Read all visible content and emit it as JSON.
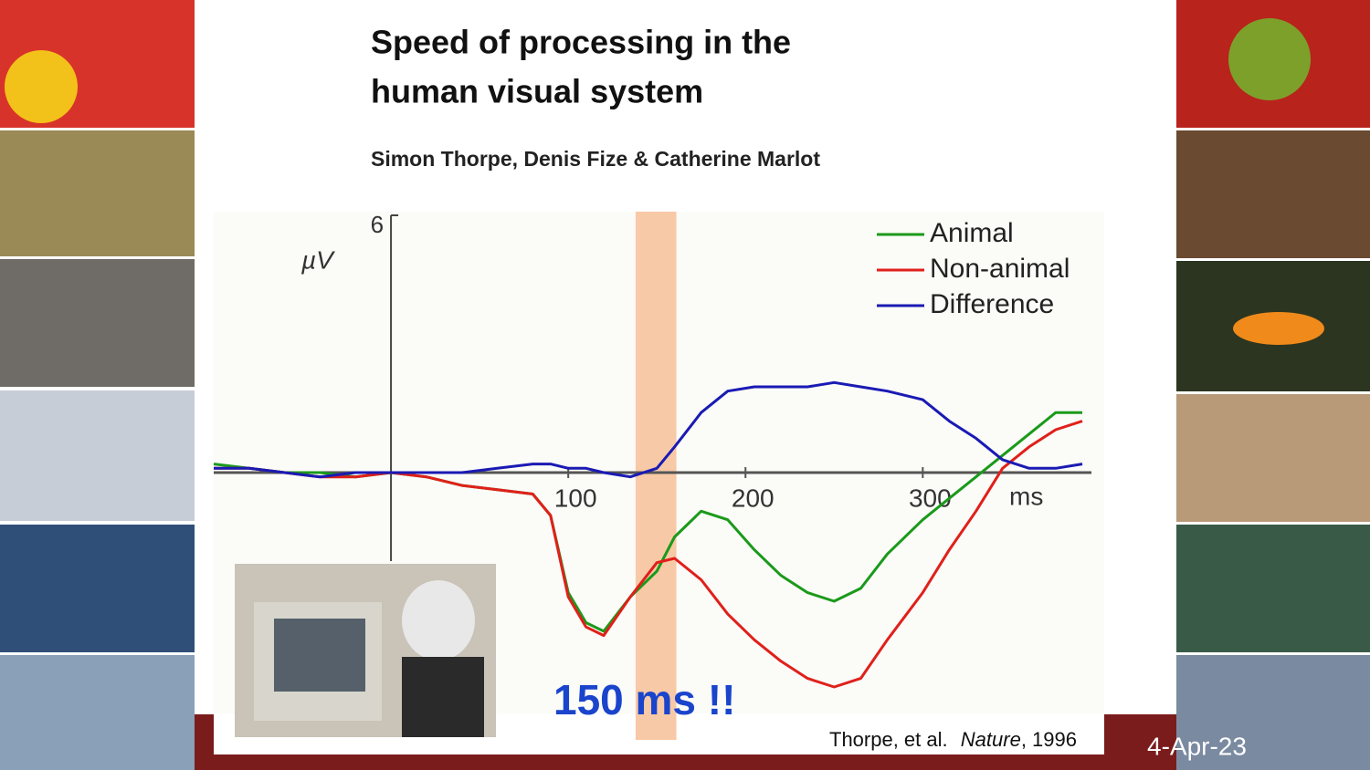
{
  "slide": {
    "title": [
      "Speed of processing in the",
      "human visual system"
    ],
    "authors": "Simon Thorpe, Denis Fize & Catherine Marlot",
    "annotation": "150 ms !!",
    "citation": {
      "authors": "Thorpe, et al.",
      "journal": "Nature",
      "year": ", 1996"
    },
    "date": "4-Apr-23"
  },
  "chart_data": {
    "type": "line",
    "y_label": "µV",
    "x_label": "ms",
    "x": [
      -100,
      -80,
      -60,
      -40,
      -20,
      0,
      20,
      40,
      60,
      80,
      90,
      100,
      110,
      120,
      135,
      150,
      160,
      175,
      190,
      205,
      220,
      235,
      250,
      265,
      280,
      300,
      315,
      330,
      345,
      360,
      375,
      390
    ],
    "series": [
      {
        "name": "Animal",
        "color": "#1a9a1a",
        "values": [
          0.2,
          0.1,
          0,
          0,
          -0.1,
          0,
          -0.1,
          -0.3,
          -0.4,
          -0.5,
          -1.0,
          -2.8,
          -3.5,
          -3.7,
          -2.9,
          -2.3,
          -1.5,
          -0.9,
          -1.1,
          -1.8,
          -2.4,
          -2.8,
          -3.0,
          -2.7,
          -1.9,
          -1.1,
          -0.6,
          -0.1,
          0.4,
          0.9,
          1.4,
          1.4
        ]
      },
      {
        "name": "Non-animal",
        "color": "#e0201a",
        "values": [
          0.1,
          0.1,
          0,
          -0.1,
          -0.1,
          0,
          -0.1,
          -0.3,
          -0.4,
          -0.5,
          -1.0,
          -2.9,
          -3.6,
          -3.8,
          -2.9,
          -2.1,
          -2.0,
          -2.5,
          -3.3,
          -3.9,
          -4.4,
          -4.8,
          -5.0,
          -4.8,
          -3.9,
          -2.8,
          -1.8,
          -0.9,
          0.1,
          0.6,
          1.0,
          1.2
        ]
      },
      {
        "name": "Difference",
        "color": "#1a1ab4",
        "values": [
          0.1,
          0.1,
          0,
          -0.1,
          0,
          0,
          0,
          0,
          0.1,
          0.2,
          0.2,
          0.1,
          0.1,
          0,
          -0.1,
          0.1,
          0.6,
          1.4,
          1.9,
          2.0,
          2.0,
          2.0,
          2.1,
          2.0,
          1.9,
          1.7,
          1.2,
          0.8,
          0.3,
          0.1,
          0.1,
          0.2
        ]
      }
    ],
    "highlight": [
      138,
      161
    ],
    "highlight_color": "#f8c9a6",
    "xlim": [
      -100,
      390
    ],
    "ylim": [
      -6,
      6
    ],
    "xticks": [
      100,
      200,
      300
    ],
    "yticks": [
      6
    ],
    "legend": "upper right"
  }
}
